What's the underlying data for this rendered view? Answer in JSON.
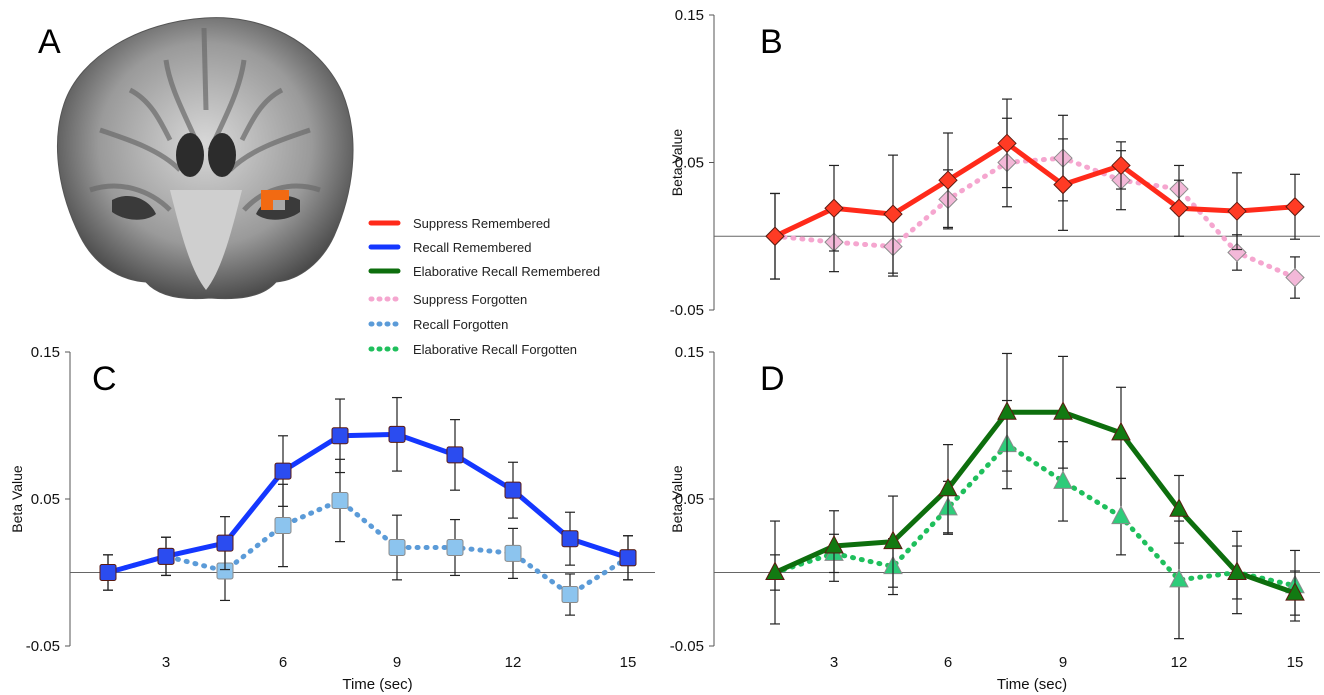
{
  "panel_letters": {
    "a": "A",
    "b": "B",
    "c": "C",
    "d": "D"
  },
  "legend": [
    {
      "label": "Suppress Remembered",
      "color": "#ff2a1a",
      "style": "solid"
    },
    {
      "label": "Recall Remembered",
      "color": "#1437ff",
      "style": "solid"
    },
    {
      "label": "Elaborative Recall Remembered",
      "color": "#0d6e0d",
      "style": "solid"
    },
    {
      "label": "Suppress Forgotten",
      "color": "#f5a6cf",
      "style": "dotted"
    },
    {
      "label": "Recall Forgotten",
      "color": "#5b9bd8",
      "style": "dotted"
    },
    {
      "label": "Elaborative Recall Forgotten",
      "color": "#1fbf5c",
      "style": "dotted"
    }
  ],
  "chart_data": [
    {
      "panel": "B",
      "type": "line",
      "ylabel": "Beta Value",
      "xlabel": "",
      "ylim": [
        -0.05,
        0.15
      ],
      "yticks": [
        "0.15",
        "0.05",
        "-0.05"
      ],
      "xticks": [],
      "x": [
        1.5,
        3,
        4.5,
        6,
        7.5,
        9,
        10.5,
        12,
        13.5,
        15
      ],
      "series": [
        {
          "name": "Suppress Remembered",
          "color": "#ff2a1a",
          "style": "solid",
          "marker": "diamond",
          "marker_fill": "#ff3b24",
          "values": [
            0.0,
            0.019,
            0.015,
            0.038,
            0.063,
            0.035,
            0.048,
            0.019,
            0.017,
            0.02
          ],
          "err": [
            0.029,
            0.029,
            0.04,
            0.032,
            0.03,
            0.031,
            0.016,
            0.019,
            0.026,
            0.022
          ]
        },
        {
          "name": "Suppress Forgotten",
          "color": "#f5a6cf",
          "style": "dotted",
          "marker": "diamond",
          "marker_fill": "#f3b8d8",
          "values": [
            0.0,
            -0.004,
            -0.007,
            0.025,
            0.05,
            0.053,
            0.038,
            0.032,
            -0.011,
            -0.028
          ],
          "err": [
            0.029,
            0.02,
            0.02,
            0.02,
            0.03,
            0.029,
            0.02,
            0.016,
            0.012,
            0.014
          ]
        }
      ]
    },
    {
      "panel": "C",
      "type": "line",
      "ylabel": "Beta Value",
      "xlabel": "Time (sec)",
      "ylim": [
        -0.05,
        0.15
      ],
      "yticks": [
        "0.15",
        "0.05",
        "-0.05"
      ],
      "xticks": [
        "3",
        "6",
        "9",
        "12",
        "15"
      ],
      "x": [
        1.5,
        3,
        4.5,
        6,
        7.5,
        9,
        10.5,
        12,
        13.5,
        15
      ],
      "series": [
        {
          "name": "Recall Remembered",
          "color": "#1437ff",
          "style": "solid",
          "marker": "square",
          "marker_fill": "#2b4cf0",
          "values": [
            0.0,
            0.011,
            0.02,
            0.069,
            0.093,
            0.094,
            0.08,
            0.056,
            0.023,
            0.01
          ],
          "err": [
            0.012,
            0.013,
            0.018,
            0.024,
            0.025,
            0.025,
            0.024,
            0.019,
            0.018,
            0.015
          ]
        },
        {
          "name": "Recall Forgotten",
          "color": "#5b9bd8",
          "style": "dotted",
          "marker": "square",
          "marker_fill": "#8cc4ee",
          "values": [
            0.0,
            0.011,
            0.001,
            0.032,
            0.049,
            0.017,
            0.017,
            0.013,
            -0.015,
            0.01
          ],
          "err": [
            0.012,
            0.013,
            0.02,
            0.028,
            0.028,
            0.022,
            0.019,
            0.017,
            0.014,
            0.015
          ]
        }
      ]
    },
    {
      "panel": "D",
      "type": "line",
      "ylabel": "Beta Value",
      "xlabel": "Time (sec)",
      "ylim": [
        -0.05,
        0.15
      ],
      "yticks": [
        "0.15",
        "0.05",
        "-0.05"
      ],
      "xticks": [
        "3",
        "6",
        "9",
        "12",
        "15"
      ],
      "x": [
        1.5,
        3,
        4.5,
        6,
        7.5,
        9,
        10.5,
        12,
        13.5,
        15
      ],
      "series": [
        {
          "name": "Elaborative Recall Remembered",
          "color": "#0d6e0d",
          "style": "solid",
          "marker": "triangle",
          "marker_fill": "#127a12",
          "values": [
            0.0,
            0.018,
            0.021,
            0.057,
            0.109,
            0.109,
            0.095,
            0.043,
            0.0,
            -0.014
          ],
          "err": [
            0.035,
            0.024,
            0.031,
            0.03,
            0.04,
            0.038,
            0.031,
            0.023,
            0.028,
            0.015
          ]
        },
        {
          "name": "Elaborative Recall Forgotten",
          "color": "#1fbf5c",
          "style": "dotted",
          "marker": "triangle",
          "marker_fill": "#2ecc7a",
          "values": [
            0.0,
            0.013,
            0.004,
            0.044,
            0.087,
            0.062,
            0.038,
            -0.005,
            0.0,
            -0.009
          ],
          "err": [
            0.012,
            0.013,
            0.019,
            0.018,
            0.03,
            0.027,
            0.026,
            0.04,
            0.018,
            0.024
          ]
        }
      ]
    }
  ]
}
